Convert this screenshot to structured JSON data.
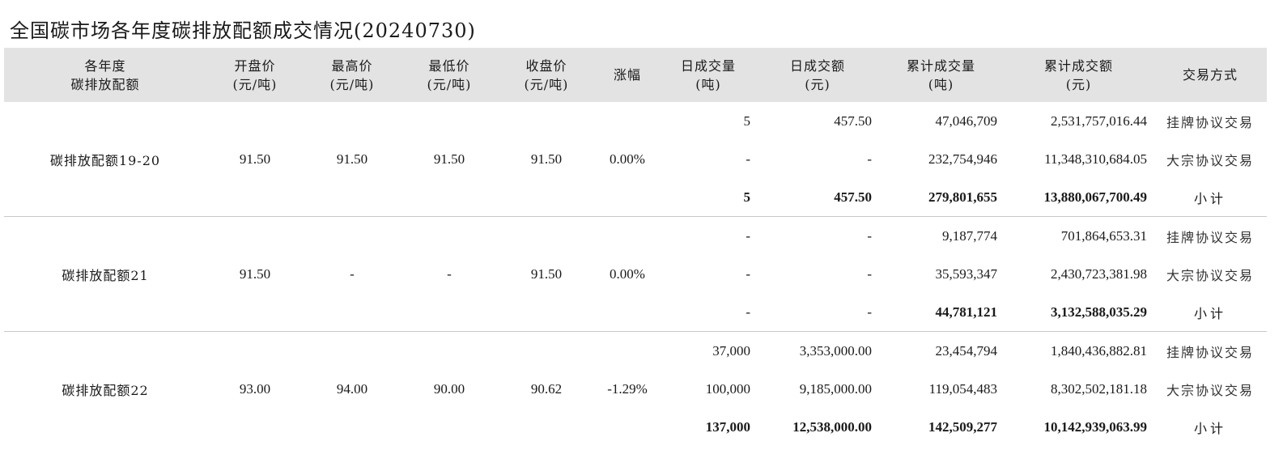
{
  "page_title": "全国碳市场各年度碳排放配额成交情况(20240730)",
  "headers": [
    {
      "line1": "各年度",
      "line2": "碳排放配额"
    },
    {
      "line1": "开盘价",
      "line2": "(元/吨)"
    },
    {
      "line1": "最高价",
      "line2": "(元/吨)"
    },
    {
      "line1": "最低价",
      "line2": "(元/吨)"
    },
    {
      "line1": "收盘价",
      "line2": "(元/吨)"
    },
    {
      "line1": "涨幅",
      "line2": ""
    },
    {
      "line1": "日成交量",
      "line2": "(吨)"
    },
    {
      "line1": "日成交额",
      "line2": "(元)"
    },
    {
      "line1": "累计成交量",
      "line2": "(吨)"
    },
    {
      "line1": "累计成交额",
      "line2": "(元)"
    },
    {
      "line1": "交易方式",
      "line2": ""
    }
  ],
  "groups": [
    {
      "name": "碳排放配额19-20",
      "open": "91.50",
      "high": "91.50",
      "low": "91.50",
      "close": "91.50",
      "change": "0.00%",
      "rows": [
        {
          "daily_volume": "5",
          "daily_amount": "457.50",
          "cum_volume": "47,046,709",
          "cum_amount": "2,531,757,016.44",
          "mode": "挂牌协议交易"
        },
        {
          "daily_volume": "-",
          "daily_amount": "-",
          "cum_volume": "232,754,946",
          "cum_amount": "11,348,310,684.05",
          "mode": "大宗协议交易"
        },
        {
          "daily_volume": "5",
          "daily_amount": "457.50",
          "cum_volume": "279,801,655",
          "cum_amount": "13,880,067,700.49",
          "mode": "小计"
        }
      ]
    },
    {
      "name": "碳排放配额21",
      "open": "91.50",
      "high": "-",
      "low": "-",
      "close": "91.50",
      "change": "0.00%",
      "rows": [
        {
          "daily_volume": "-",
          "daily_amount": "-",
          "cum_volume": "9,187,774",
          "cum_amount": "701,864,653.31",
          "mode": "挂牌协议交易"
        },
        {
          "daily_volume": "-",
          "daily_amount": "-",
          "cum_volume": "35,593,347",
          "cum_amount": "2,430,723,381.98",
          "mode": "大宗协议交易"
        },
        {
          "daily_volume": "-",
          "daily_amount": "-",
          "cum_volume": "44,781,121",
          "cum_amount": "3,132,588,035.29",
          "mode": "小计"
        }
      ]
    },
    {
      "name": "碳排放配额22",
      "open": "93.00",
      "high": "94.00",
      "low": "90.00",
      "close": "90.62",
      "change": "-1.29%",
      "rows": [
        {
          "daily_volume": "37,000",
          "daily_amount": "3,353,000.00",
          "cum_volume": "23,454,794",
          "cum_amount": "1,840,436,882.81",
          "mode": "挂牌协议交易"
        },
        {
          "daily_volume": "100,000",
          "daily_amount": "9,185,000.00",
          "cum_volume": "119,054,483",
          "cum_amount": "8,302,502,181.18",
          "mode": "大宗协议交易"
        },
        {
          "daily_volume": "137,000",
          "daily_amount": "12,538,000.00",
          "cum_volume": "142,509,277",
          "cum_amount": "10,142,939,063.99",
          "mode": "小计"
        }
      ]
    }
  ]
}
